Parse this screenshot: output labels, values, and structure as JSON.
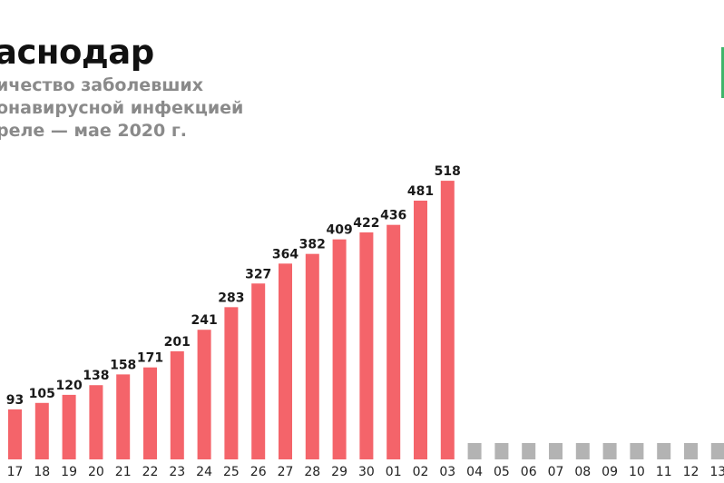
{
  "header": {
    "title": "аснодар",
    "subtitle_lines": [
      "ичество заболевших",
      "онавирусной инфекцией",
      "реле — мае 2020 г."
    ]
  },
  "colors": {
    "bar": "#f4646a",
    "placeholder": "#b3b3b3",
    "accent": "#3fb56a"
  },
  "chart_data": {
    "type": "bar",
    "categories": [
      "17",
      "18",
      "19",
      "20",
      "21",
      "22",
      "23",
      "24",
      "25",
      "26",
      "27",
      "28",
      "29",
      "30",
      "01",
      "02",
      "03",
      "04",
      "05",
      "06",
      "07",
      "08",
      "09",
      "10",
      "11",
      "12",
      "13"
    ],
    "values": [
      93,
      105,
      120,
      138,
      158,
      171,
      201,
      241,
      283,
      327,
      364,
      382,
      409,
      422,
      436,
      481,
      518,
      null,
      null,
      null,
      null,
      null,
      null,
      null,
      null,
      null,
      null
    ],
    "title": "аснодар",
    "xlabel": "",
    "ylabel": "",
    "ylim": [
      0,
      560
    ],
    "grid": false,
    "legend": "none"
  }
}
